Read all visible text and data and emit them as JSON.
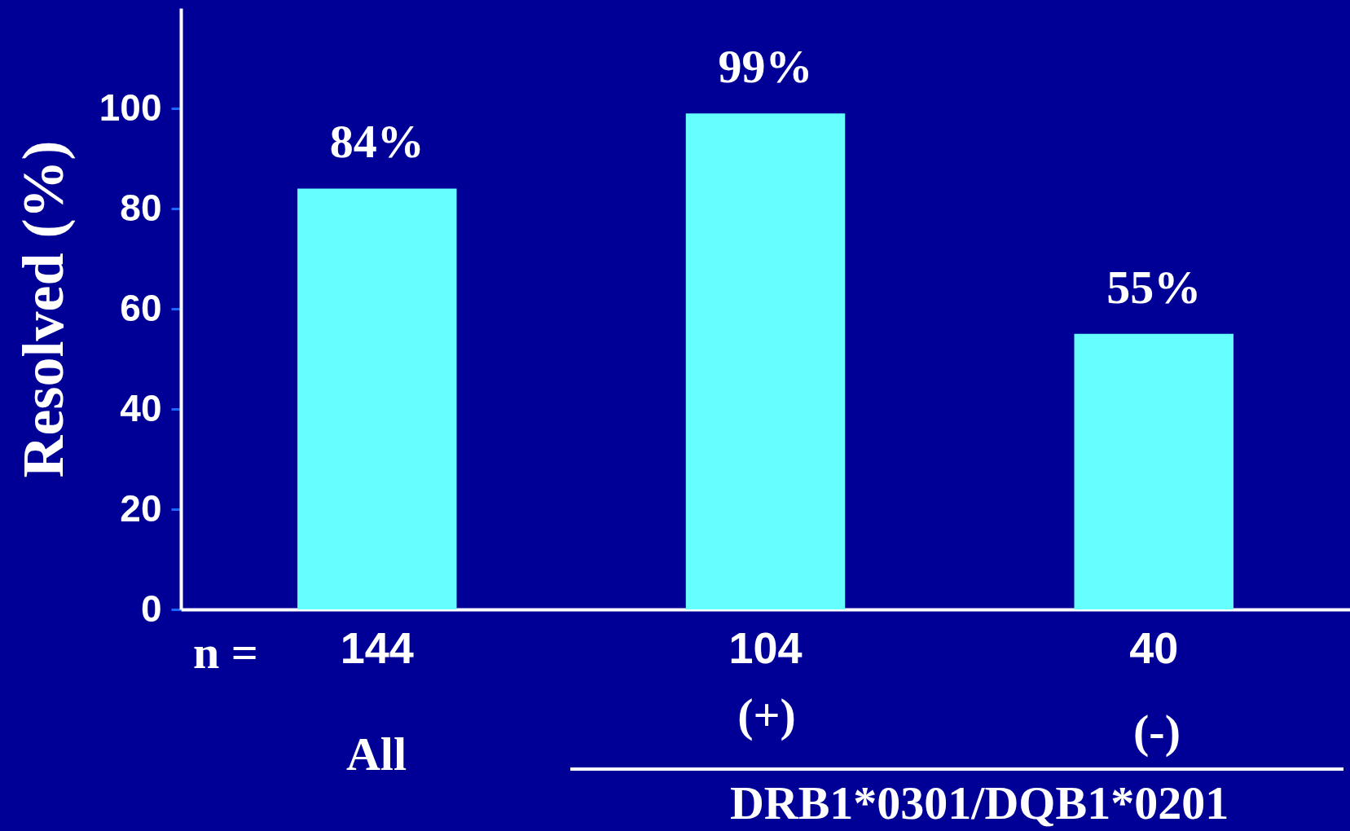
{
  "chart_data": {
    "type": "bar",
    "ylabel": "Resolved (%)",
    "categories": [
      "144",
      "104",
      "40"
    ],
    "values": [
      84,
      99,
      55
    ],
    "value_labels": [
      "84%",
      "99%",
      "55%"
    ],
    "color": "#66ffff",
    "ylim": [
      0,
      120
    ],
    "yticks": [
      0,
      20,
      40,
      60,
      80,
      100
    ],
    "annotations": [
      "n =",
      "All",
      "(+)",
      "(-)",
      "DRB1*0301/DQB1*0201"
    ]
  }
}
